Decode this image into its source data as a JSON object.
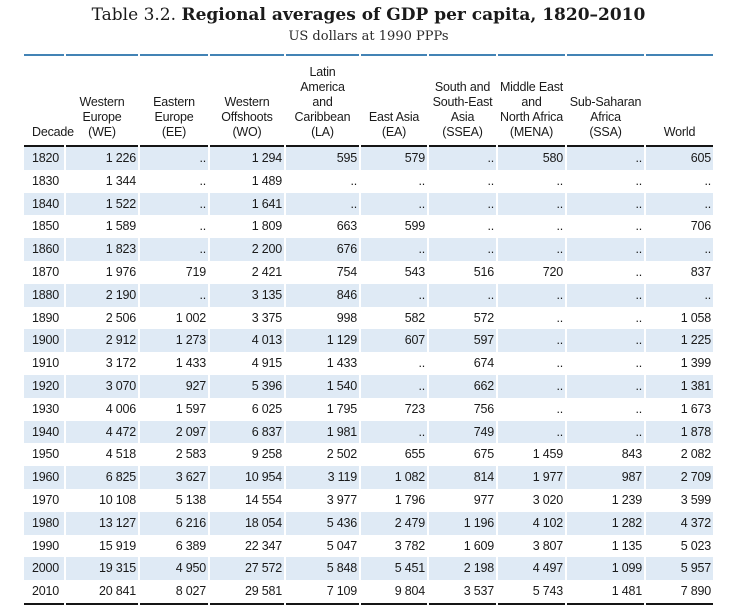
{
  "title": {
    "prefix": "Table 3.2.",
    "main": "Regional averages of GDP per capita, 1820–2010",
    "subtitle": "US dollars at 1990 PPPs"
  },
  "colors": {
    "rule_blue": "#4383b5",
    "rule_dark": "#151515",
    "row_stripe": "#dfeaf5",
    "text": "#1a1a1a"
  },
  "missing_marker": "..",
  "table": {
    "columns": [
      {
        "id": "decade",
        "label": "Decade"
      },
      {
        "id": "we",
        "label": "Western\nEurope\n(WE)"
      },
      {
        "id": "ee",
        "label": "Eastern\nEurope\n(EE)"
      },
      {
        "id": "wo",
        "label": "Western\nOffshoots\n(WO)"
      },
      {
        "id": "la",
        "label": "Latin\nAmerica\nand\nCaribbean\n(LA)"
      },
      {
        "id": "ea",
        "label": "East Asia\n(EA)"
      },
      {
        "id": "ssea",
        "label": "South and\nSouth-East\nAsia\n(SSEA)"
      },
      {
        "id": "mena",
        "label": "Middle East\nand\nNorth Africa\n(MENA)"
      },
      {
        "id": "ssa",
        "label": "Sub-Saharan\nAfrica\n(SSA)"
      },
      {
        "id": "world",
        "label": "World"
      }
    ],
    "rows": [
      [
        "1820",
        "1 226",
        "..",
        "1 294",
        "595",
        "579",
        "..",
        "580",
        "..",
        "605"
      ],
      [
        "1830",
        "1 344",
        "..",
        "1 489",
        "..",
        "..",
        "..",
        "..",
        "..",
        ".."
      ],
      [
        "1840",
        "1 522",
        "..",
        "1 641",
        "..",
        "..",
        "..",
        "..",
        "..",
        ".."
      ],
      [
        "1850",
        "1 589",
        "..",
        "1 809",
        "663",
        "599",
        "..",
        "..",
        "..",
        "706"
      ],
      [
        "1860",
        "1 823",
        "..",
        "2 200",
        "676",
        "..",
        "..",
        "..",
        "..",
        ".."
      ],
      [
        "1870",
        "1 976",
        "719",
        "2 421",
        "754",
        "543",
        "516",
        "720",
        "..",
        "837"
      ],
      [
        "1880",
        "2 190",
        "..",
        "3 135",
        "846",
        "..",
        "..",
        "..",
        "..",
        ".."
      ],
      [
        "1890",
        "2 506",
        "1 002",
        "3 375",
        "998",
        "582",
        "572",
        "..",
        "..",
        "1 058"
      ],
      [
        "1900",
        "2 912",
        "1 273",
        "4 013",
        "1 129",
        "607",
        "597",
        "..",
        "..",
        "1 225"
      ],
      [
        "1910",
        "3 172",
        "1 433",
        "4 915",
        "1 433",
        "..",
        "674",
        "..",
        "..",
        "1 399"
      ],
      [
        "1920",
        "3 070",
        "927",
        "5 396",
        "1 540",
        "..",
        "662",
        "..",
        "..",
        "1 381"
      ],
      [
        "1930",
        "4 006",
        "1 597",
        "6 025",
        "1 795",
        "723",
        "756",
        "..",
        "..",
        "1 673"
      ],
      [
        "1940",
        "4 472",
        "2 097",
        "6 837",
        "1 981",
        "..",
        "749",
        "..",
        "..",
        "1 878"
      ],
      [
        "1950",
        "4 518",
        "2 583",
        "9 258",
        "2 502",
        "655",
        "675",
        "1 459",
        "843",
        "2 082"
      ],
      [
        "1960",
        "6 825",
        "3 627",
        "10 954",
        "3 119",
        "1 082",
        "814",
        "1 977",
        "987",
        "2 709"
      ],
      [
        "1970",
        "10 108",
        "5 138",
        "14 554",
        "3 977",
        "1 796",
        "977",
        "3 020",
        "1 239",
        "3 599"
      ],
      [
        "1980",
        "13 127",
        "6 216",
        "18 054",
        "5 436",
        "2 479",
        "1 196",
        "4 102",
        "1 282",
        "4 372"
      ],
      [
        "1990",
        "15 919",
        "6 389",
        "22 347",
        "5 047",
        "3 782",
        "1 609",
        "3 807",
        "1 135",
        "5 023"
      ],
      [
        "2000",
        "19 315",
        "4 950",
        "27 572",
        "5 848",
        "5 451",
        "2 198",
        "4 497",
        "1 099",
        "5 957"
      ],
      [
        "2010",
        "20 841",
        "8 027",
        "29 581",
        "7 109",
        "9 804",
        "3 537",
        "5 743",
        "1 481",
        "7 890"
      ]
    ]
  }
}
